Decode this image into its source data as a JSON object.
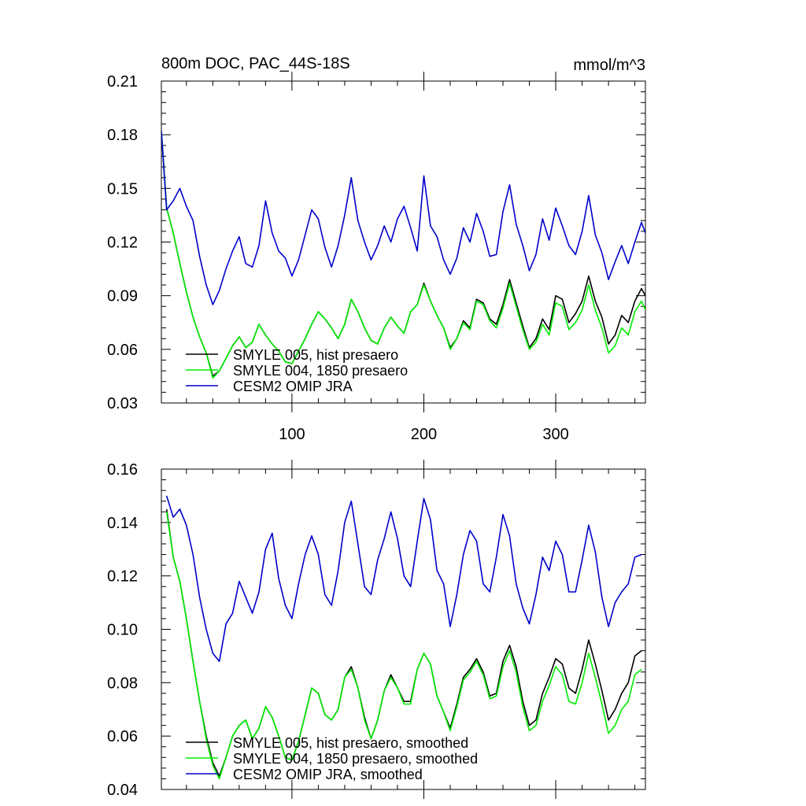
{
  "chart_data": [
    {
      "type": "line",
      "title": "800m DOC, PAC_44S-18S",
      "units": "mmol/m^3",
      "xlim": [
        1,
        368
      ],
      "ylim": [
        0.03,
        0.21
      ],
      "xticks": [
        100,
        200,
        300
      ],
      "yticks": [
        0.03,
        0.06,
        0.09,
        0.12,
        0.15,
        0.18,
        0.21
      ],
      "ytick_labels": [
        "0.03",
        "0.06",
        "0.09",
        "0.12",
        "0.15",
        "0.18",
        "0.21"
      ],
      "show_xtick_labels": true,
      "legend_position": "bottom-left",
      "series": [
        {
          "name": "SMYLE 005, hist presaero",
          "color": "#000000",
          "x": [
            1,
            5,
            10,
            15,
            20,
            25,
            30,
            35,
            40,
            45,
            50,
            55,
            60,
            65,
            70,
            75,
            80,
            85,
            90,
            95,
            100,
            105,
            110,
            115,
            120,
            125,
            130,
            135,
            140,
            145,
            150,
            155,
            160,
            165,
            170,
            175,
            180,
            185,
            190,
            195,
            200,
            205,
            210,
            215,
            220,
            225,
            230,
            235,
            240,
            245,
            250,
            255,
            260,
            265,
            270,
            275,
            280,
            285,
            290,
            295,
            300,
            305,
            310,
            315,
            320,
            325,
            330,
            335,
            340,
            345,
            350,
            355,
            360,
            365,
            368
          ],
          "y": [
            0.182,
            0.139,
            0.125,
            0.108,
            0.092,
            0.078,
            0.067,
            0.058,
            0.045,
            0.048,
            0.055,
            0.062,
            0.067,
            0.061,
            0.064,
            0.074,
            0.068,
            0.063,
            0.059,
            0.053,
            0.052,
            0.059,
            0.066,
            0.074,
            0.081,
            0.077,
            0.072,
            0.066,
            0.074,
            0.088,
            0.081,
            0.072,
            0.065,
            0.063,
            0.072,
            0.078,
            0.073,
            0.069,
            0.081,
            0.085,
            0.097,
            0.087,
            0.079,
            0.072,
            0.061,
            0.066,
            0.076,
            0.072,
            0.088,
            0.086,
            0.077,
            0.074,
            0.085,
            0.099,
            0.086,
            0.073,
            0.061,
            0.066,
            0.077,
            0.071,
            0.09,
            0.088,
            0.075,
            0.08,
            0.087,
            0.101,
            0.087,
            0.078,
            0.063,
            0.068,
            0.079,
            0.075,
            0.087,
            0.094,
            0.09
          ]
        },
        {
          "name": "SMYLE 004, 1850 presaero",
          "color": "#00ee00",
          "x": [
            1,
            5,
            10,
            15,
            20,
            25,
            30,
            35,
            40,
            45,
            50,
            55,
            60,
            65,
            70,
            75,
            80,
            85,
            90,
            95,
            100,
            105,
            110,
            115,
            120,
            125,
            130,
            135,
            140,
            145,
            150,
            155,
            160,
            165,
            170,
            175,
            180,
            185,
            190,
            195,
            200,
            205,
            210,
            215,
            220,
            225,
            230,
            235,
            240,
            245,
            250,
            255,
            260,
            265,
            270,
            275,
            280,
            285,
            290,
            295,
            300,
            305,
            310,
            315,
            320,
            325,
            330,
            335,
            340,
            345,
            350,
            355,
            360,
            365,
            368
          ],
          "y": [
            0.182,
            0.139,
            0.125,
            0.108,
            0.092,
            0.078,
            0.067,
            0.058,
            0.044,
            0.048,
            0.055,
            0.062,
            0.067,
            0.061,
            0.064,
            0.074,
            0.068,
            0.063,
            0.059,
            0.053,
            0.052,
            0.059,
            0.066,
            0.074,
            0.081,
            0.077,
            0.072,
            0.066,
            0.074,
            0.088,
            0.081,
            0.072,
            0.065,
            0.063,
            0.072,
            0.078,
            0.073,
            0.069,
            0.081,
            0.085,
            0.096,
            0.087,
            0.079,
            0.072,
            0.06,
            0.066,
            0.075,
            0.071,
            0.087,
            0.085,
            0.076,
            0.072,
            0.083,
            0.097,
            0.084,
            0.071,
            0.06,
            0.064,
            0.074,
            0.068,
            0.086,
            0.084,
            0.071,
            0.075,
            0.082,
            0.096,
            0.082,
            0.072,
            0.058,
            0.062,
            0.072,
            0.068,
            0.081,
            0.087,
            0.082
          ]
        },
        {
          "name": "CESM2 OMIP JRA",
          "color": "#0000cc",
          "x": [
            1,
            5,
            10,
            15,
            20,
            25,
            30,
            35,
            40,
            45,
            50,
            55,
            60,
            65,
            70,
            75,
            80,
            85,
            90,
            95,
            100,
            105,
            110,
            115,
            120,
            125,
            130,
            135,
            140,
            145,
            150,
            155,
            160,
            165,
            170,
            175,
            180,
            185,
            190,
            195,
            200,
            205,
            210,
            215,
            220,
            225,
            230,
            235,
            240,
            245,
            250,
            255,
            260,
            265,
            270,
            275,
            280,
            285,
            290,
            295,
            300,
            305,
            310,
            315,
            320,
            325,
            330,
            335,
            340,
            345,
            350,
            355,
            360,
            365,
            368
          ],
          "y": [
            0.182,
            0.138,
            0.143,
            0.15,
            0.14,
            0.132,
            0.112,
            0.096,
            0.085,
            0.093,
            0.105,
            0.115,
            0.123,
            0.108,
            0.106,
            0.118,
            0.143,
            0.125,
            0.115,
            0.111,
            0.101,
            0.11,
            0.124,
            0.138,
            0.133,
            0.117,
            0.106,
            0.118,
            0.135,
            0.156,
            0.132,
            0.12,
            0.11,
            0.118,
            0.129,
            0.12,
            0.133,
            0.14,
            0.128,
            0.115,
            0.157,
            0.129,
            0.123,
            0.11,
            0.102,
            0.111,
            0.128,
            0.12,
            0.136,
            0.126,
            0.112,
            0.113,
            0.137,
            0.152,
            0.13,
            0.118,
            0.104,
            0.113,
            0.133,
            0.121,
            0.139,
            0.129,
            0.118,
            0.113,
            0.126,
            0.146,
            0.124,
            0.114,
            0.099,
            0.109,
            0.118,
            0.108,
            0.12,
            0.131,
            0.125
          ]
        }
      ]
    },
    {
      "type": "line",
      "title": "",
      "units": "",
      "xlim": [
        1,
        368
      ],
      "ylim": [
        0.04,
        0.16
      ],
      "xticks": [
        100,
        200,
        300
      ],
      "yticks": [
        0.04,
        0.06,
        0.08,
        0.1,
        0.12,
        0.14,
        0.16
      ],
      "ytick_labels": [
        "0.04",
        "0.06",
        "0.08",
        "0.10",
        "0.12",
        "0.14",
        "0.16"
      ],
      "show_xtick_labels": false,
      "legend_position": "bottom-left",
      "series": [
        {
          "name": "SMYLE 005, hist presaero, smoothed",
          "color": "#000000",
          "x": [
            5,
            10,
            15,
            20,
            25,
            30,
            35,
            40,
            45,
            50,
            55,
            60,
            65,
            70,
            75,
            80,
            85,
            90,
            95,
            100,
            105,
            110,
            115,
            120,
            125,
            130,
            135,
            140,
            145,
            150,
            155,
            160,
            165,
            170,
            175,
            180,
            185,
            190,
            195,
            200,
            205,
            210,
            215,
            220,
            225,
            230,
            235,
            240,
            245,
            250,
            255,
            260,
            265,
            270,
            275,
            280,
            285,
            290,
            295,
            300,
            305,
            310,
            315,
            320,
            325,
            330,
            335,
            340,
            345,
            350,
            355,
            360,
            365
          ],
          "y": [
            0.145,
            0.127,
            0.118,
            0.104,
            0.088,
            0.073,
            0.06,
            0.05,
            0.045,
            0.052,
            0.06,
            0.064,
            0.066,
            0.059,
            0.063,
            0.071,
            0.067,
            0.06,
            0.052,
            0.051,
            0.058,
            0.068,
            0.078,
            0.076,
            0.068,
            0.066,
            0.07,
            0.082,
            0.086,
            0.078,
            0.067,
            0.059,
            0.066,
            0.077,
            0.083,
            0.078,
            0.073,
            0.073,
            0.085,
            0.091,
            0.087,
            0.075,
            0.069,
            0.063,
            0.072,
            0.082,
            0.085,
            0.089,
            0.084,
            0.075,
            0.076,
            0.088,
            0.094,
            0.086,
            0.073,
            0.064,
            0.066,
            0.076,
            0.082,
            0.089,
            0.087,
            0.078,
            0.076,
            0.085,
            0.096,
            0.087,
            0.077,
            0.066,
            0.07,
            0.076,
            0.08,
            0.09,
            0.092
          ]
        },
        {
          "name": "SMYLE 004, 1850 presaero, smoothed",
          "color": "#00ee00",
          "x": [
            5,
            10,
            15,
            20,
            25,
            30,
            35,
            40,
            45,
            50,
            55,
            60,
            65,
            70,
            75,
            80,
            85,
            90,
            95,
            100,
            105,
            110,
            115,
            120,
            125,
            130,
            135,
            140,
            145,
            150,
            155,
            160,
            165,
            170,
            175,
            180,
            185,
            190,
            195,
            200,
            205,
            210,
            215,
            220,
            225,
            230,
            235,
            240,
            245,
            250,
            255,
            260,
            265,
            270,
            275,
            280,
            285,
            290,
            295,
            300,
            305,
            310,
            315,
            320,
            325,
            330,
            335,
            340,
            345,
            350,
            355,
            360,
            365
          ],
          "y": [
            0.144,
            0.127,
            0.118,
            0.104,
            0.088,
            0.073,
            0.059,
            0.049,
            0.044,
            0.052,
            0.06,
            0.064,
            0.066,
            0.059,
            0.063,
            0.071,
            0.067,
            0.06,
            0.052,
            0.051,
            0.058,
            0.068,
            0.078,
            0.076,
            0.068,
            0.066,
            0.07,
            0.082,
            0.085,
            0.078,
            0.066,
            0.059,
            0.066,
            0.077,
            0.082,
            0.078,
            0.072,
            0.072,
            0.085,
            0.091,
            0.087,
            0.075,
            0.069,
            0.062,
            0.071,
            0.081,
            0.084,
            0.088,
            0.083,
            0.074,
            0.075,
            0.086,
            0.092,
            0.084,
            0.071,
            0.062,
            0.064,
            0.073,
            0.079,
            0.086,
            0.083,
            0.073,
            0.072,
            0.08,
            0.091,
            0.082,
            0.072,
            0.061,
            0.064,
            0.07,
            0.073,
            0.083,
            0.085
          ]
        },
        {
          "name": "CESM2 OMIP JRA, smoothed",
          "color": "#0000cc",
          "x": [
            5,
            10,
            15,
            20,
            25,
            30,
            35,
            40,
            45,
            50,
            55,
            60,
            65,
            70,
            75,
            80,
            85,
            90,
            95,
            100,
            105,
            110,
            115,
            120,
            125,
            130,
            135,
            140,
            145,
            150,
            155,
            160,
            165,
            170,
            175,
            180,
            185,
            190,
            195,
            200,
            205,
            210,
            215,
            220,
            225,
            230,
            235,
            240,
            245,
            250,
            255,
            260,
            265,
            270,
            275,
            280,
            285,
            290,
            295,
            300,
            305,
            310,
            315,
            320,
            325,
            330,
            335,
            340,
            345,
            350,
            355,
            360,
            365
          ],
          "y": [
            0.15,
            0.142,
            0.145,
            0.139,
            0.128,
            0.112,
            0.1,
            0.091,
            0.088,
            0.102,
            0.106,
            0.118,
            0.112,
            0.106,
            0.114,
            0.13,
            0.136,
            0.119,
            0.109,
            0.104,
            0.117,
            0.128,
            0.135,
            0.128,
            0.113,
            0.109,
            0.122,
            0.14,
            0.148,
            0.132,
            0.116,
            0.113,
            0.126,
            0.134,
            0.144,
            0.134,
            0.12,
            0.116,
            0.133,
            0.149,
            0.141,
            0.122,
            0.117,
            0.101,
            0.113,
            0.128,
            0.137,
            0.133,
            0.117,
            0.114,
            0.127,
            0.143,
            0.135,
            0.117,
            0.108,
            0.102,
            0.113,
            0.127,
            0.122,
            0.133,
            0.128,
            0.114,
            0.114,
            0.126,
            0.139,
            0.129,
            0.112,
            0.101,
            0.11,
            0.114,
            0.117,
            0.127,
            0.128
          ]
        }
      ]
    }
  ]
}
